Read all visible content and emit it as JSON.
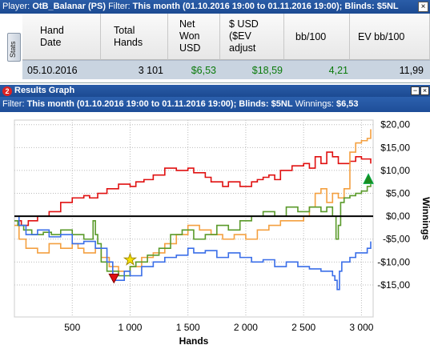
{
  "topbar": {
    "player_label": "Player:",
    "player_value": "OtB_Balanar (PS)",
    "filter_label": "Filter:",
    "filter_value": "This month (01.10.2016 19:00 to 01.11.2016 19:00); Blinds: $5NL",
    "close_glyph": "×"
  },
  "stats": {
    "tab_label": "Stats",
    "columns": [
      {
        "key": "hand_date",
        "label": "Hand\nDate"
      },
      {
        "key": "total_hands",
        "label": "Total\nHands"
      },
      {
        "key": "net_won",
        "label": "Net\nWon\nUSD"
      },
      {
        "key": "usd_ev",
        "label": "$ USD\n($EV\nadjust"
      },
      {
        "key": "bb100",
        "label": "bb/100"
      },
      {
        "key": "ev_bb100",
        "label": "EV bb/100"
      }
    ],
    "row": {
      "hand_date": "05.10.2016",
      "total_hands": "3 101",
      "net_won": "$6,53",
      "usd_ev": "$18,59",
      "bb100": "4,21",
      "ev_bb100": "11,99"
    }
  },
  "graph_panel": {
    "badge": "2",
    "title": "Results Graph",
    "filter_label": "Filter:",
    "filter_value": "This month (01.10.2016 19:00 to 01.11.2016 19:00); Blinds: $5NL",
    "winnings_label": "Winnings:",
    "winnings_value": "$6,53"
  },
  "chart_data": {
    "type": "line",
    "xlabel": "Hands",
    "ylabel": "Winnings",
    "xlim": [
      0,
      3101
    ],
    "ylim": [
      -22,
      21
    ],
    "x_ticks": [
      {
        "v": 500,
        "label": "500"
      },
      {
        "v": 1000,
        "label": "1 000"
      },
      {
        "v": 1500,
        "label": "1 500"
      },
      {
        "v": 2000,
        "label": "2 000"
      },
      {
        "v": 2500,
        "label": "2 500"
      },
      {
        "v": 3000,
        "label": "3 000"
      }
    ],
    "y_ticks": [
      {
        "v": 20,
        "label": "$20,00"
      },
      {
        "v": 15,
        "label": "$15,00"
      },
      {
        "v": 10,
        "label": "$10,00"
      },
      {
        "v": 5,
        "label": "$5,00"
      },
      {
        "v": 0,
        "label": "$0,00"
      },
      {
        "v": -5,
        "label": "-$5,00"
      },
      {
        "v": -10,
        "label": "-$10,00"
      },
      {
        "v": -15,
        "label": "-$15,00"
      }
    ],
    "grid": true,
    "colors": {
      "red": "#e01010",
      "orange": "#f4a040",
      "green": "#5a9a2a",
      "blue": "#3a6ee8",
      "zero": "#000000",
      "grid": "#bbbbbb"
    },
    "series": [
      {
        "color_key": "red",
        "points": [
          [
            0,
            -1
          ],
          [
            60,
            -2
          ],
          [
            120,
            -1
          ],
          [
            200,
            0
          ],
          [
            300,
            1
          ],
          [
            400,
            3
          ],
          [
            500,
            4
          ],
          [
            600,
            4.5
          ],
          [
            650,
            4
          ],
          [
            720,
            5
          ],
          [
            800,
            6
          ],
          [
            900,
            7
          ],
          [
            1000,
            6.5
          ],
          [
            1050,
            7.5
          ],
          [
            1120,
            8
          ],
          [
            1200,
            9
          ],
          [
            1300,
            10.5
          ],
          [
            1400,
            10
          ],
          [
            1500,
            10.5
          ],
          [
            1550,
            9.5
          ],
          [
            1650,
            8.5
          ],
          [
            1700,
            7.5
          ],
          [
            1800,
            6.5
          ],
          [
            1850,
            7.5
          ],
          [
            1950,
            6.5
          ],
          [
            2050,
            7.5
          ],
          [
            2100,
            8
          ],
          [
            2150,
            8.5
          ],
          [
            2200,
            9
          ],
          [
            2250,
            8
          ],
          [
            2300,
            10
          ],
          [
            2400,
            11
          ],
          [
            2500,
            11.5
          ],
          [
            2550,
            10.5
          ],
          [
            2600,
            13
          ],
          [
            2650,
            11.5
          ],
          [
            2700,
            14
          ],
          [
            2750,
            13
          ],
          [
            2800,
            11.5
          ],
          [
            2900,
            12
          ],
          [
            2950,
            13
          ],
          [
            3000,
            12.5
          ],
          [
            3050,
            12.5
          ],
          [
            3080,
            11.5
          ]
        ]
      },
      {
        "color_key": "orange",
        "points": [
          [
            0,
            -2
          ],
          [
            40,
            -5
          ],
          [
            100,
            -7
          ],
          [
            200,
            -8
          ],
          [
            300,
            -6
          ],
          [
            400,
            -7
          ],
          [
            500,
            -6
          ],
          [
            550,
            -7
          ],
          [
            600,
            -8
          ],
          [
            700,
            -7
          ],
          [
            750,
            -9
          ],
          [
            820,
            -11
          ],
          [
            900,
            -12
          ],
          [
            1000,
            -11
          ],
          [
            1100,
            -9
          ],
          [
            1200,
            -8
          ],
          [
            1300,
            -6
          ],
          [
            1400,
            -4
          ],
          [
            1500,
            -2
          ],
          [
            1600,
            -3
          ],
          [
            1700,
            -4
          ],
          [
            1800,
            -5
          ],
          [
            1900,
            -4
          ],
          [
            2000,
            -5
          ],
          [
            2100,
            -3
          ],
          [
            2200,
            -2
          ],
          [
            2300,
            -1
          ],
          [
            2400,
            -1
          ],
          [
            2500,
            0
          ],
          [
            2550,
            2
          ],
          [
            2600,
            5
          ],
          [
            2650,
            6
          ],
          [
            2700,
            3
          ],
          [
            2750,
            5
          ],
          [
            2800,
            4
          ],
          [
            2850,
            6
          ],
          [
            2900,
            14
          ],
          [
            2950,
            16
          ],
          [
            3000,
            16.5
          ],
          [
            3050,
            17
          ],
          [
            3080,
            19
          ]
        ]
      },
      {
        "color_key": "green",
        "points": [
          [
            0,
            -1
          ],
          [
            30,
            -2
          ],
          [
            80,
            -3
          ],
          [
            150,
            -4
          ],
          [
            250,
            -3.5
          ],
          [
            320,
            -4
          ],
          [
            400,
            -3
          ],
          [
            500,
            -4
          ],
          [
            600,
            -5
          ],
          [
            680,
            -1
          ],
          [
            700,
            -4
          ],
          [
            720,
            -6
          ],
          [
            750,
            -10
          ],
          [
            800,
            -12
          ],
          [
            900,
            -13
          ],
          [
            1000,
            -11
          ],
          [
            1050,
            -10
          ],
          [
            1150,
            -8.5
          ],
          [
            1250,
            -7
          ],
          [
            1350,
            -4
          ],
          [
            1450,
            -3
          ],
          [
            1550,
            -5
          ],
          [
            1650,
            -4
          ],
          [
            1750,
            -2
          ],
          [
            1850,
            -3
          ],
          [
            1950,
            -1
          ],
          [
            2050,
            0
          ],
          [
            2150,
            1
          ],
          [
            2250,
            0
          ],
          [
            2350,
            2
          ],
          [
            2450,
            1
          ],
          [
            2550,
            2
          ],
          [
            2650,
            1
          ],
          [
            2700,
            2
          ],
          [
            2750,
            0
          ],
          [
            2780,
            -5
          ],
          [
            2800,
            -2
          ],
          [
            2820,
            3
          ],
          [
            2850,
            4
          ],
          [
            2900,
            4.5
          ],
          [
            2950,
            5
          ],
          [
            3000,
            5.5
          ],
          [
            3050,
            6.5
          ],
          [
            3080,
            7
          ]
        ]
      },
      {
        "color_key": "blue",
        "points": [
          [
            0,
            0
          ],
          [
            40,
            -2
          ],
          [
            100,
            -4
          ],
          [
            200,
            -3
          ],
          [
            300,
            -4.5
          ],
          [
            400,
            -4
          ],
          [
            500,
            -6
          ],
          [
            600,
            -5.5
          ],
          [
            700,
            -7
          ],
          [
            800,
            -10
          ],
          [
            850,
            -14
          ],
          [
            950,
            -12
          ],
          [
            1000,
            -13
          ],
          [
            1100,
            -11
          ],
          [
            1200,
            -10
          ],
          [
            1300,
            -9
          ],
          [
            1400,
            -8.5
          ],
          [
            1500,
            -7
          ],
          [
            1550,
            -8
          ],
          [
            1650,
            -7.5
          ],
          [
            1750,
            -9
          ],
          [
            1850,
            -8
          ],
          [
            1950,
            -9
          ],
          [
            2050,
            -10
          ],
          [
            2150,
            -9.5
          ],
          [
            2250,
            -11
          ],
          [
            2350,
            -10
          ],
          [
            2450,
            -11
          ],
          [
            2550,
            -11.5
          ],
          [
            2650,
            -12
          ],
          [
            2750,
            -13
          ],
          [
            2770,
            -14
          ],
          [
            2790,
            -16
          ],
          [
            2810,
            -12
          ],
          [
            2830,
            -10
          ],
          [
            2900,
            -9
          ],
          [
            2950,
            -8
          ],
          [
            3000,
            -8
          ],
          [
            3050,
            -7
          ],
          [
            3080,
            -5.5
          ]
        ]
      }
    ],
    "markers": [
      {
        "kind": "down-triangle",
        "color": "#e01010",
        "x": 860,
        "y": -13.5
      },
      {
        "kind": "star",
        "color": "#f6e200",
        "x": 1000,
        "y": -9.5
      },
      {
        "kind": "up-triangle",
        "color": "#1e8a1e",
        "x": 3060,
        "y": 8
      }
    ]
  }
}
